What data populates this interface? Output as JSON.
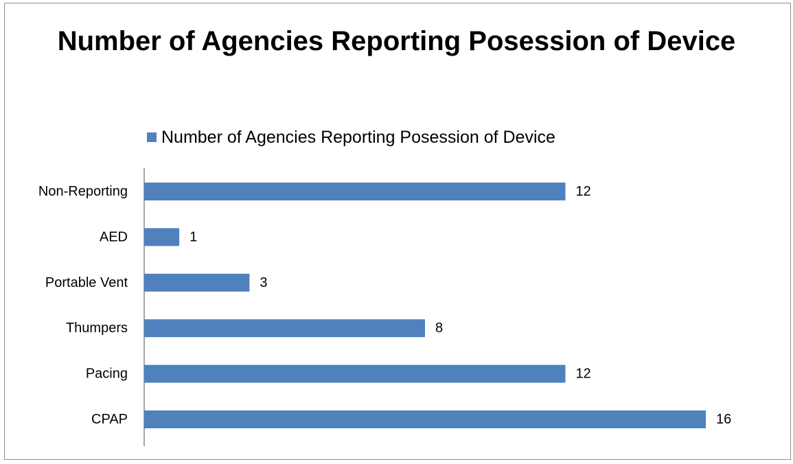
{
  "chart_data": {
    "type": "bar",
    "orientation": "horizontal",
    "title": "Number of Agencies Reporting Posession of Device",
    "categories": [
      "Non-Reporting",
      "AED",
      "Portable Vent",
      "Thumpers",
      "Pacing",
      "CPAP"
    ],
    "series": [
      {
        "name": "Number of Agencies Reporting Posession of Device",
        "values": [
          12,
          1,
          3,
          8,
          12,
          16
        ],
        "color": "#4f81bd"
      }
    ],
    "xlim": [
      0,
      16
    ],
    "grid": false,
    "data_labels": true,
    "legend_position": "top"
  }
}
